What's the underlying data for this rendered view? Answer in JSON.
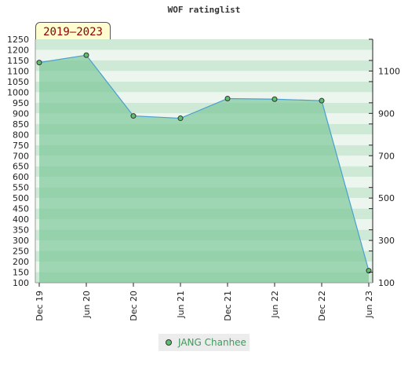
{
  "chart_data": {
    "type": "area",
    "title": "WOF ratinglist",
    "period": "2019–2023",
    "x": [
      "Dec 19",
      "Jun 20",
      "Dec 20",
      "Jun 21",
      "Dec 21",
      "Jun 22",
      "Dec 22",
      "Jun 23"
    ],
    "series": [
      {
        "name": "JANG Chanhee",
        "values": [
          1140,
          1175,
          888,
          877,
          970,
          967,
          960,
          157
        ]
      }
    ],
    "left_axis": {
      "ylim": [
        100,
        1250
      ],
      "ticks": [
        100,
        150,
        200,
        250,
        300,
        350,
        400,
        450,
        500,
        550,
        600,
        650,
        700,
        750,
        800,
        850,
        900,
        950,
        1000,
        1050,
        1100,
        1150,
        1200,
        1250
      ]
    },
    "right_axis": {
      "ylim": [
        100,
        1250
      ],
      "ticks": [
        100,
        300,
        500,
        700,
        900,
        1100
      ]
    },
    "xlabel": "",
    "ylabel": "",
    "legend_position": "bottom",
    "colors": {
      "area": "#7dc89a",
      "line": "#4a9fd0",
      "marker": "#5cc06e",
      "band_light": "#e9f5ec",
      "band_dark": "#c6e6d0"
    }
  }
}
